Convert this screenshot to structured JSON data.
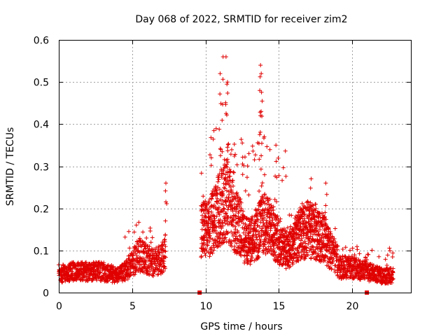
{
  "chart_data": {
    "type": "scatter",
    "title": "Day 068 of 2022, SRMTID for receiver zim2",
    "xlabel": "GPS time / hours",
    "ylabel": "SRMTID / TECUs",
    "xlim": [
      0,
      24
    ],
    "ylim": [
      0,
      0.6
    ],
    "x_ticks": [
      0,
      5,
      10,
      15,
      20
    ],
    "x_tick_labels": [
      "0",
      "5",
      "10",
      "15",
      "20"
    ],
    "y_ticks": [
      0,
      0.1,
      0.2,
      0.3,
      0.4,
      0.5,
      0.6
    ],
    "y_tick_labels": [
      "0",
      "0.1",
      "0.2",
      "0.3",
      "0.4",
      "0.5",
      "0.6"
    ],
    "grid": true,
    "marker": "plus",
    "color": "#e00000",
    "series": [
      {
        "name": "SRMTID",
        "segments": [
          {
            "x_start": 0.0,
            "x_end": 4.5,
            "envelope": [
              [
                0.0,
                0.04
              ],
              [
                1.0,
                0.05
              ],
              [
                2.0,
                0.05
              ],
              [
                3.0,
                0.05
              ],
              [
                4.0,
                0.04
              ],
              [
                4.5,
                0.05
              ]
            ],
            "max_value": 0.09
          },
          {
            "x_start": 4.5,
            "x_end": 7.3,
            "envelope": [
              [
                4.5,
                0.05
              ],
              [
                5.0,
                0.07
              ],
              [
                5.5,
                0.09
              ],
              [
                6.0,
                0.08
              ],
              [
                6.5,
                0.07
              ],
              [
                7.0,
                0.08
              ],
              [
                7.3,
                0.1
              ]
            ],
            "max_value": 0.26
          },
          {
            "x_start": 9.7,
            "x_end": 12.5,
            "envelope": [
              [
                9.7,
                0.15
              ],
              [
                10.2,
                0.15
              ],
              [
                10.7,
                0.18
              ],
              [
                11.0,
                0.2
              ],
              [
                11.5,
                0.22
              ],
              [
                12.0,
                0.17
              ],
              [
                12.5,
                0.15
              ]
            ],
            "max_value": 0.56
          },
          {
            "x_start": 12.5,
            "x_end": 15.5,
            "envelope": [
              [
                12.5,
                0.13
              ],
              [
                13.0,
                0.12
              ],
              [
                13.5,
                0.14
              ],
              [
                14.0,
                0.17
              ],
              [
                14.5,
                0.15
              ],
              [
                15.0,
                0.12
              ],
              [
                15.5,
                0.1
              ]
            ],
            "max_value": 0.54
          },
          {
            "x_start": 15.5,
            "x_end": 19.0,
            "envelope": [
              [
                15.5,
                0.1
              ],
              [
                16.0,
                0.12
              ],
              [
                16.5,
                0.14
              ],
              [
                17.0,
                0.15
              ],
              [
                17.5,
                0.14
              ],
              [
                18.0,
                0.13
              ],
              [
                18.5,
                0.1
              ],
              [
                19.0,
                0.08
              ]
            ],
            "max_value": 0.27
          },
          {
            "x_start": 19.0,
            "x_end": 22.8,
            "envelope": [
              [
                19.0,
                0.06
              ],
              [
                20.0,
                0.06
              ],
              [
                21.0,
                0.05
              ],
              [
                22.0,
                0.04
              ],
              [
                22.8,
                0.04
              ]
            ],
            "max_value": 0.16
          }
        ],
        "peaks": [
          {
            "x": 7.3,
            "y": 0.26
          },
          {
            "x": 11.2,
            "y": 0.56
          },
          {
            "x": 11.4,
            "y": 0.56
          },
          {
            "x": 11.0,
            "y": 0.52
          },
          {
            "x": 11.5,
            "y": 0.5
          },
          {
            "x": 13.75,
            "y": 0.54
          },
          {
            "x": 13.8,
            "y": 0.52
          },
          {
            "x": 13.7,
            "y": 0.48
          },
          {
            "x": 14.8,
            "y": 0.35
          },
          {
            "x": 17.2,
            "y": 0.27
          },
          {
            "x": 18.2,
            "y": 0.26
          }
        ],
        "gap_markers": [
          {
            "x": 9.6,
            "y": 0.0
          },
          {
            "x": 21.0,
            "y": 0.0
          }
        ]
      }
    ]
  }
}
